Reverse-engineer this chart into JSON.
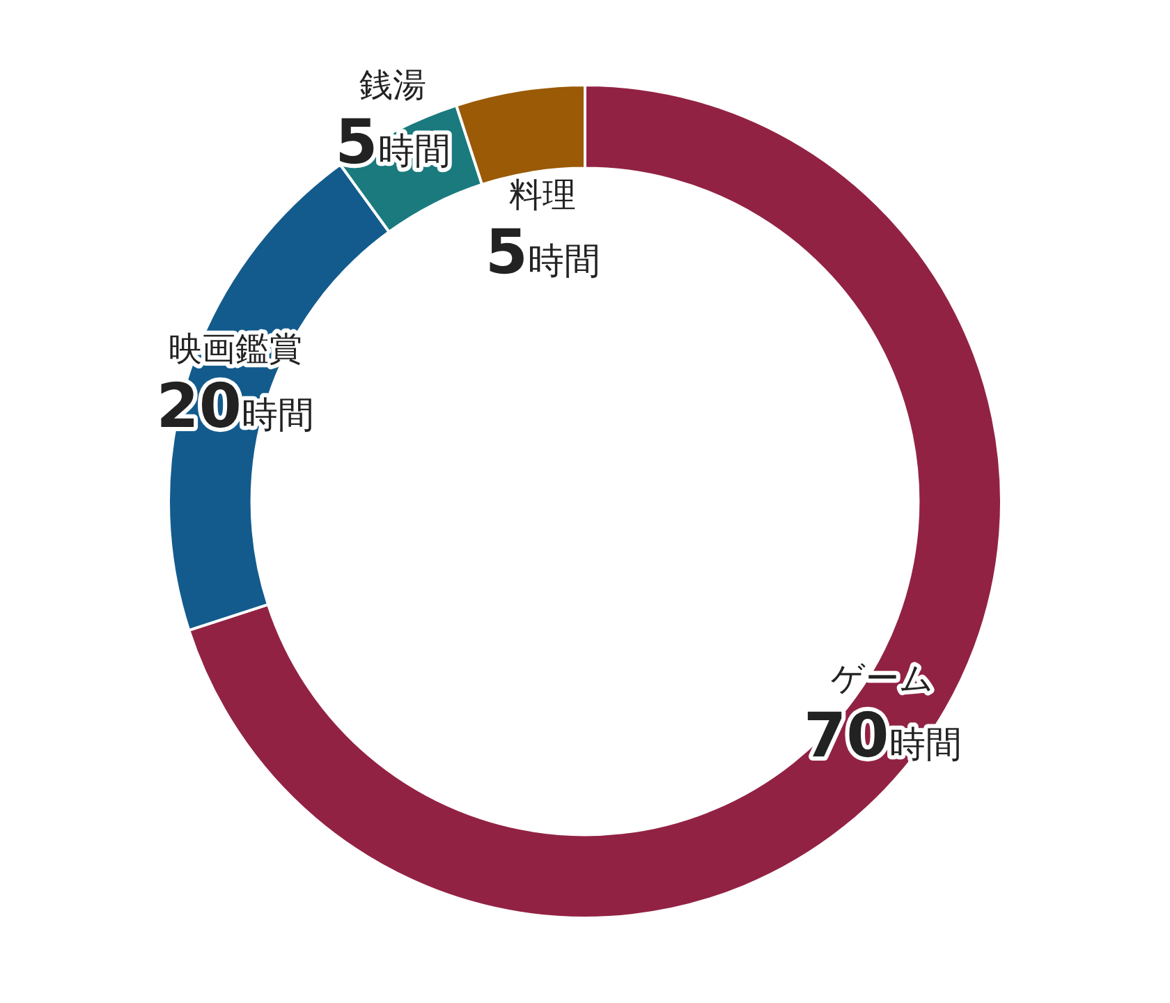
{
  "chart_data": {
    "type": "donut",
    "categories": [
      "ゲーム",
      "映画鑑賞",
      "銭湯",
      "料理"
    ],
    "values": [
      70,
      20,
      5,
      5
    ],
    "colors": [
      "#922244",
      "#135b8d",
      "#1a7a7e",
      "#9a5a06"
    ],
    "value_labels": [
      "70時間",
      "20時間",
      "5時間",
      "5時間"
    ],
    "legend": false
  }
}
